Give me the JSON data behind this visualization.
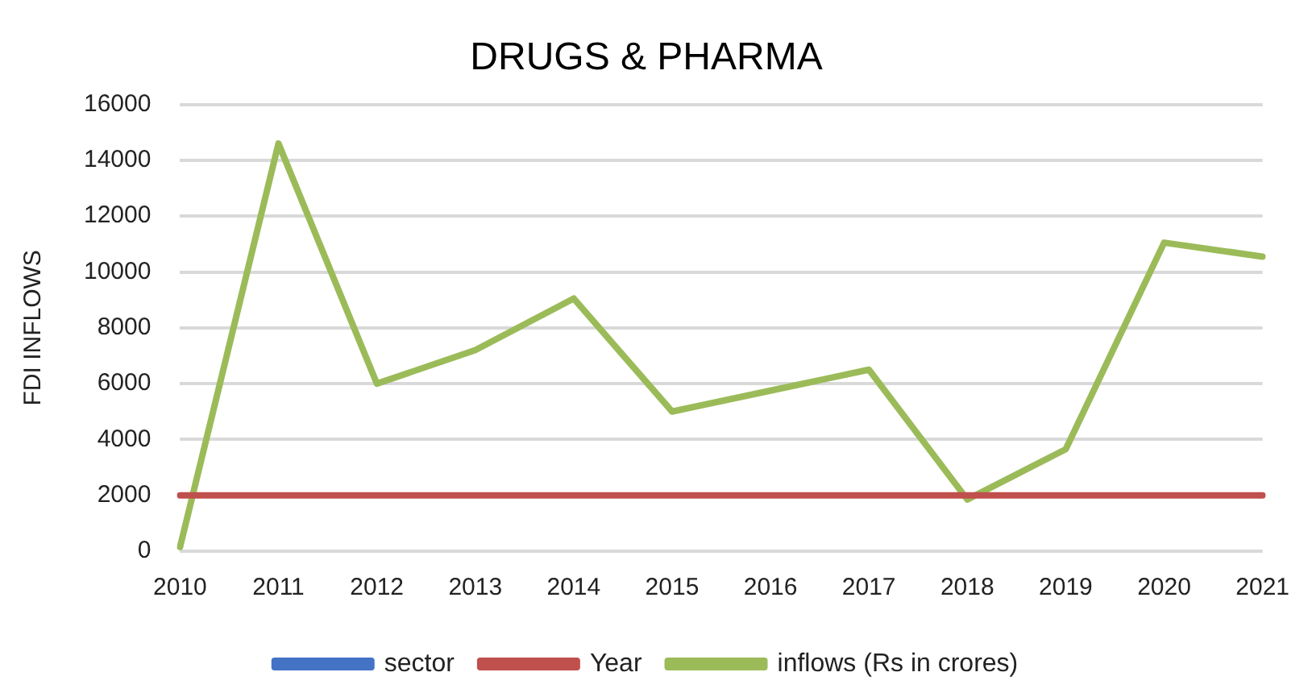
{
  "chart_data": {
    "type": "line",
    "title": "DRUGS & PHARMA",
    "ylabel": "FDI INFLOWS",
    "categories": [
      "2010",
      "2011",
      "2012",
      "2013",
      "2014",
      "2015",
      "2016",
      "2017",
      "2018",
      "2019",
      "2020",
      "2021"
    ],
    "series": [
      {
        "name": "sector",
        "color": "#4472c4",
        "values": [
          null,
          null,
          null,
          null,
          null,
          null,
          null,
          null,
          null,
          null,
          null,
          null
        ]
      },
      {
        "name": "Year",
        "color": "#c0504d",
        "values": [
          2000,
          2000,
          2000,
          2000,
          2000,
          2000,
          2000,
          2000,
          2000,
          2000,
          2000,
          2000
        ]
      },
      {
        "name": "inflows (Rs in crores)",
        "color": "#9bbb59",
        "values": [
          150,
          14600,
          6000,
          7200,
          9050,
          5000,
          5750,
          6500,
          1850,
          3650,
          11050,
          10550
        ]
      }
    ],
    "ylim": [
      0,
      16000
    ],
    "yticks": [
      0,
      2000,
      4000,
      6000,
      8000,
      10000,
      12000,
      14000,
      16000
    ],
    "grid": "y",
    "legend": "bottom",
    "marker": "none",
    "line_style": "solid"
  }
}
